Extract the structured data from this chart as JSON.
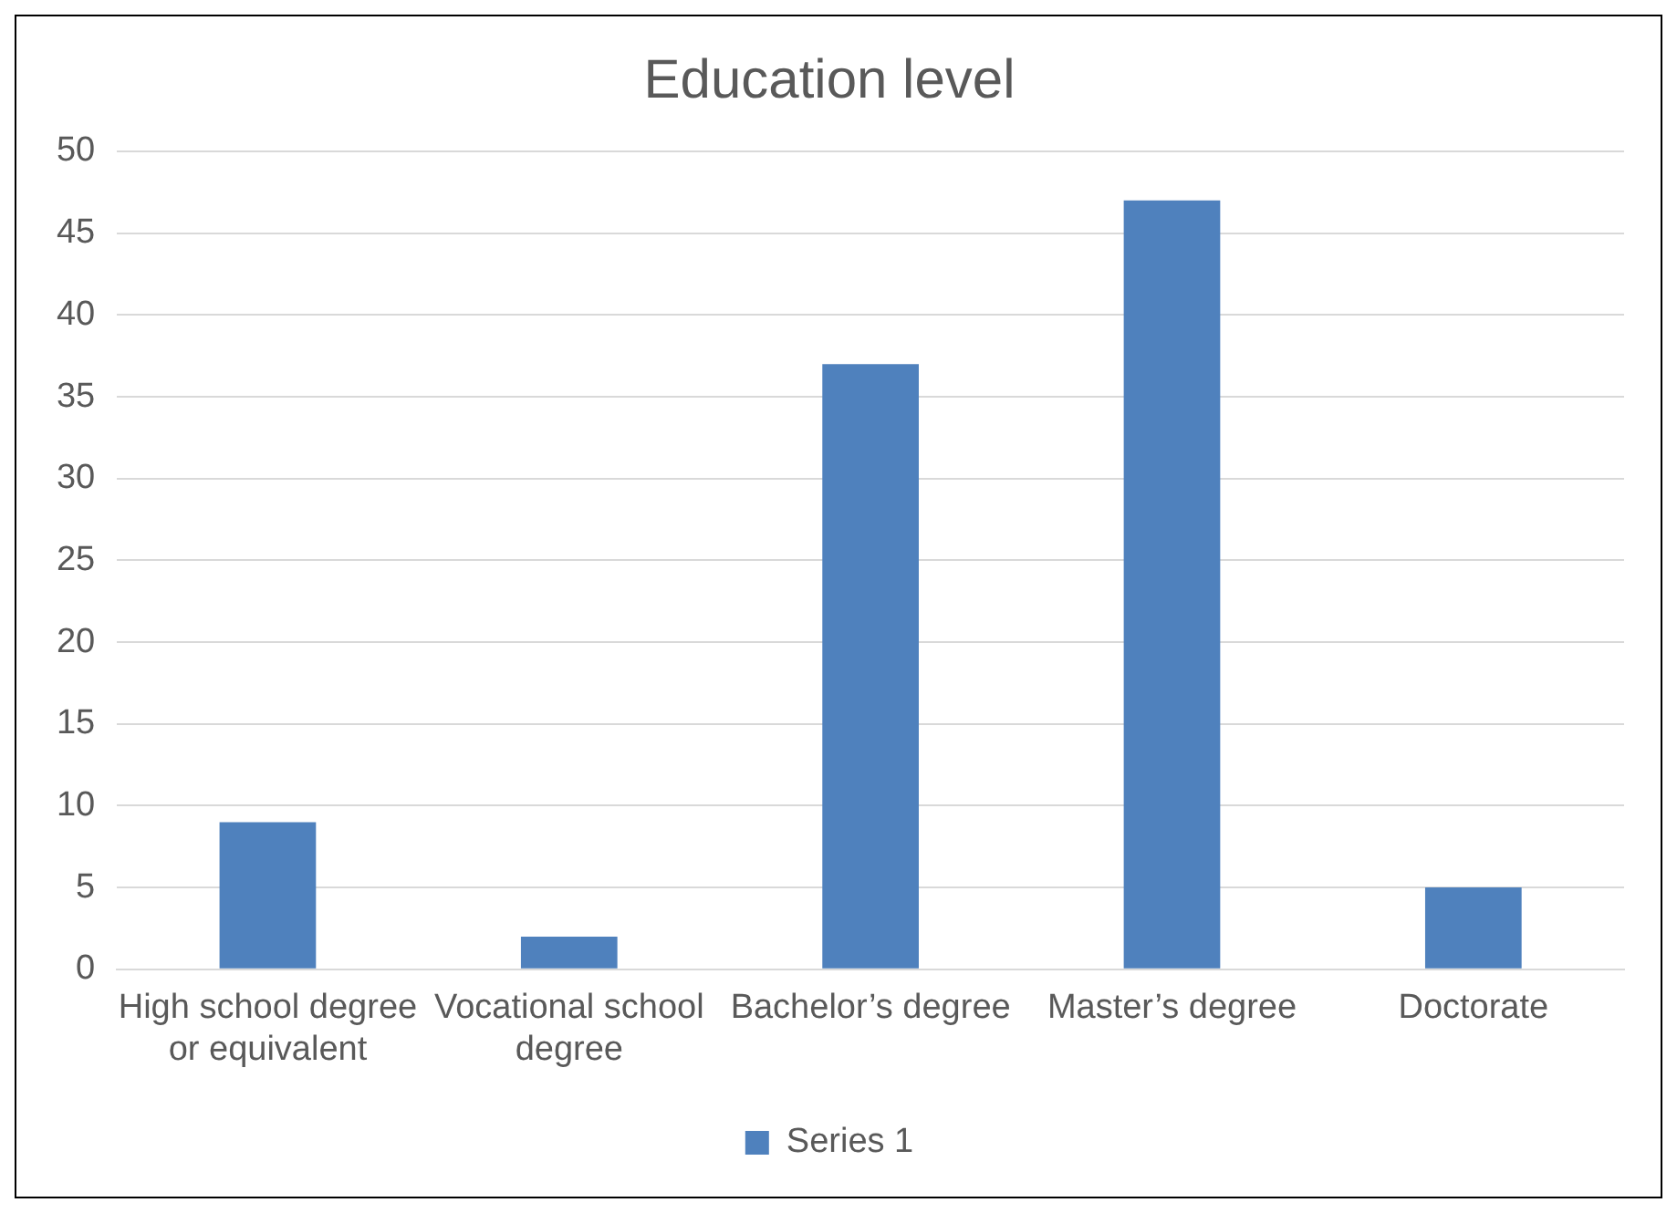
{
  "chart_data": {
    "type": "bar",
    "title": "Education level",
    "categories": [
      "High school degree or equivalent",
      "Vocational school degree",
      "Bachelor’s degree",
      "Master’s degree",
      "Doctorate"
    ],
    "series": [
      {
        "name": "Series 1",
        "color": "#4f81bd",
        "values": [
          9,
          2,
          37,
          47,
          5
        ]
      }
    ],
    "ylim": [
      0,
      50
    ],
    "yticks": [
      0,
      5,
      10,
      15,
      20,
      25,
      30,
      35,
      40,
      45,
      50
    ],
    "grid": "y",
    "legend": "bottom"
  }
}
